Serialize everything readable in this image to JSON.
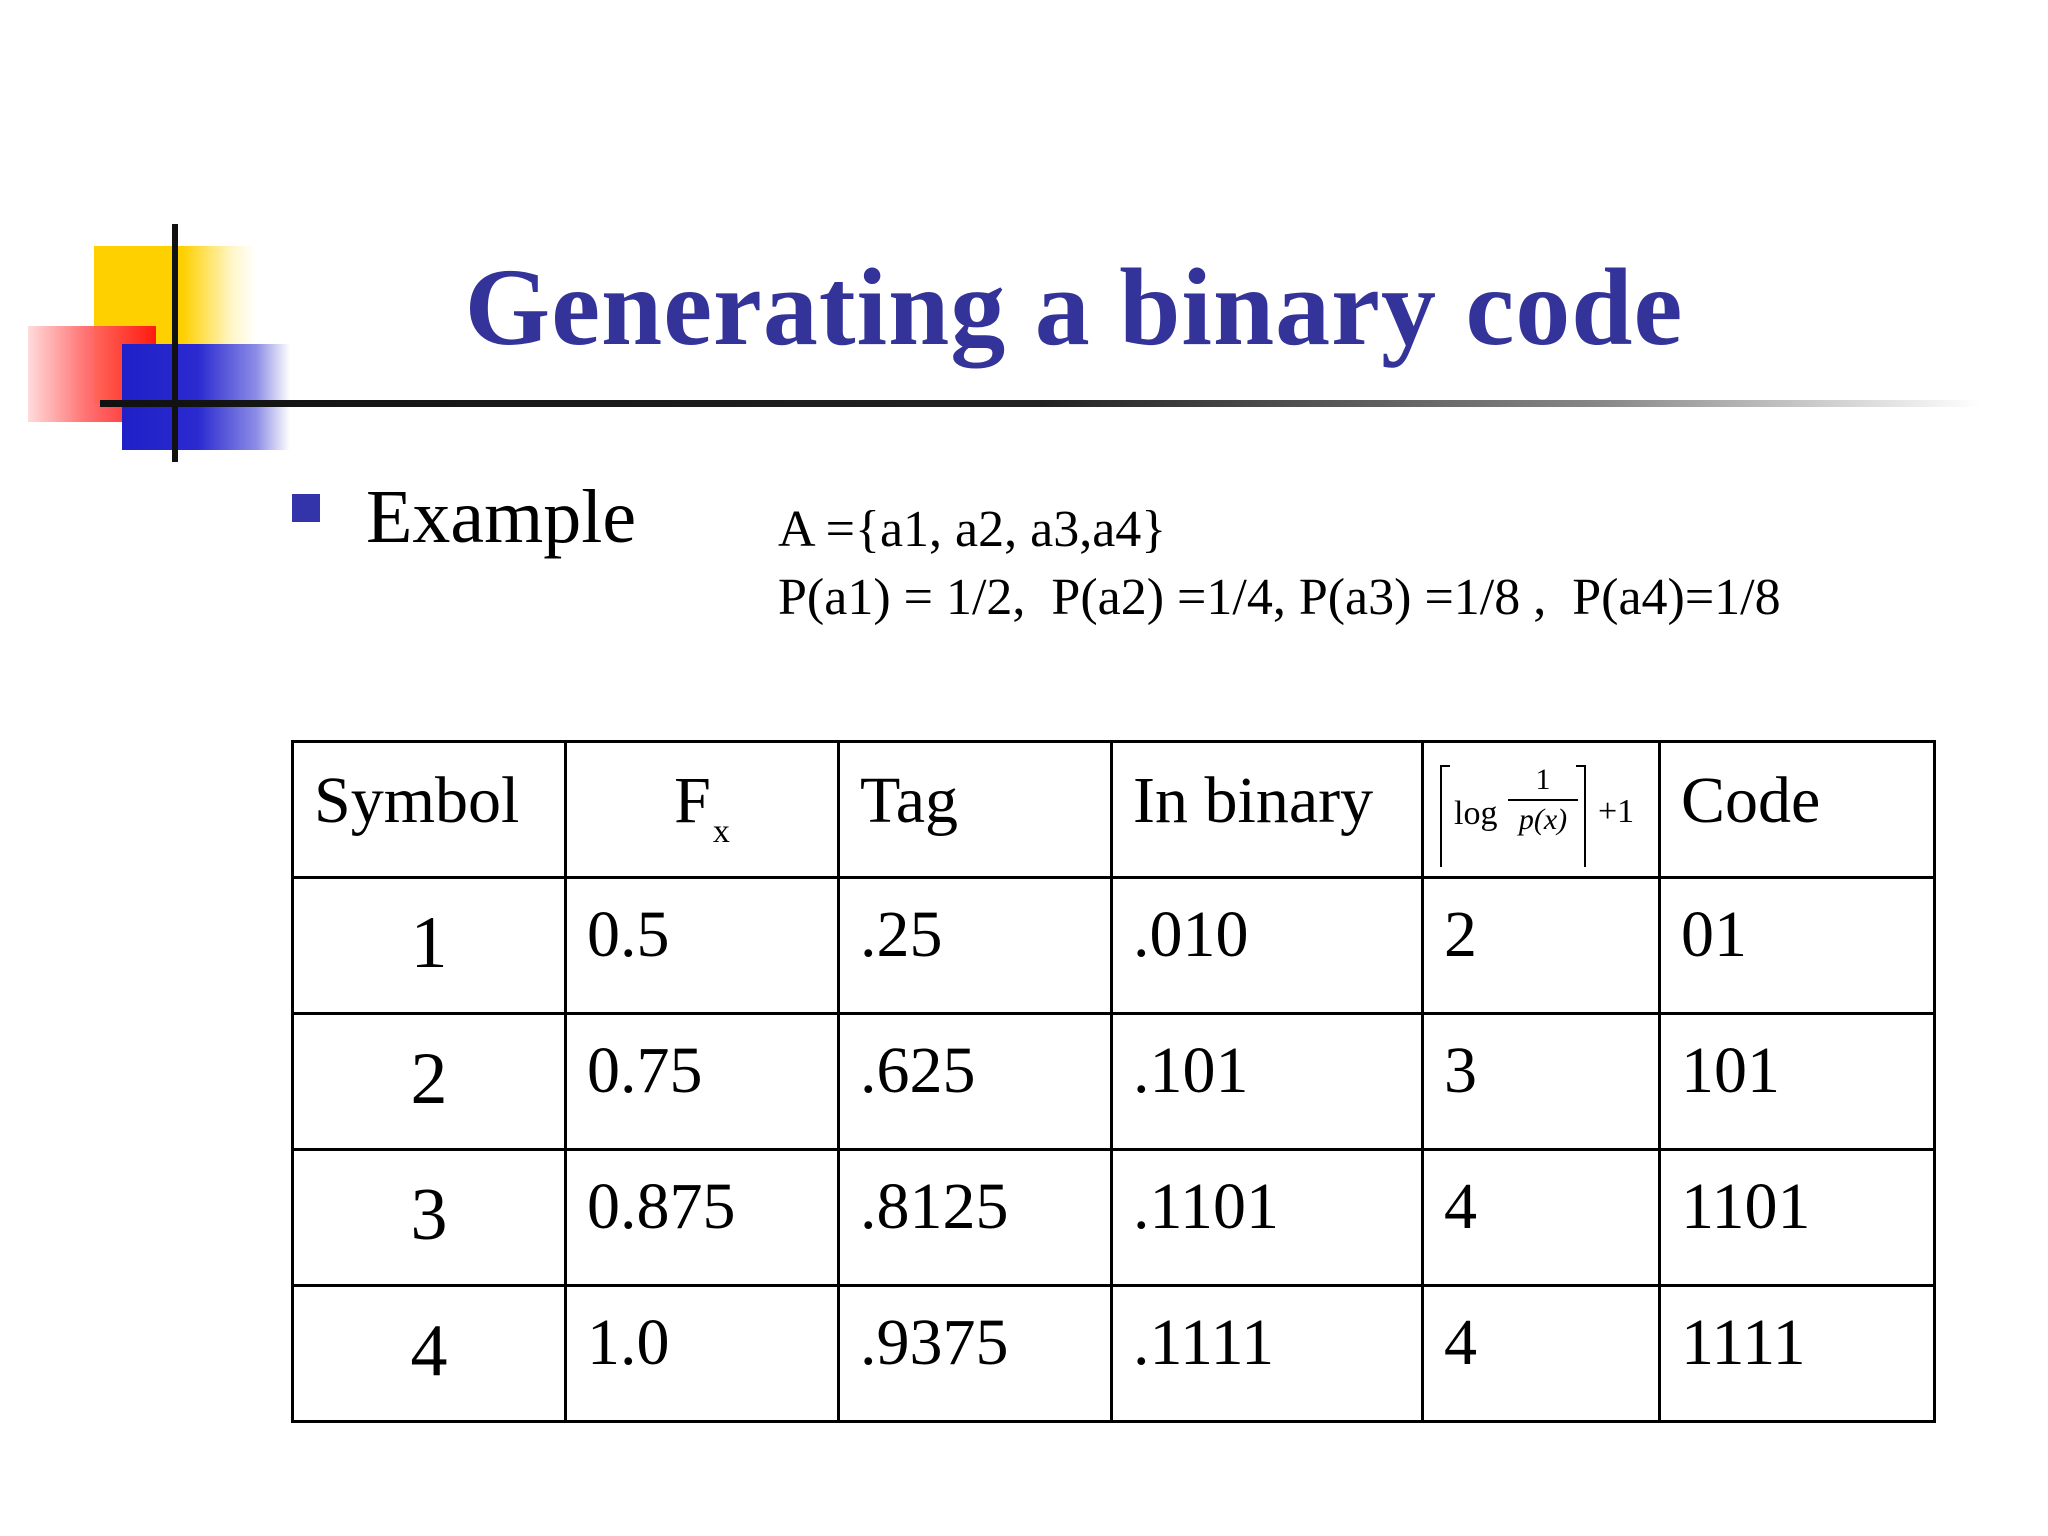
{
  "slide": {
    "title": "Generating a binary code",
    "bullet": "Example",
    "set_definition": "A ={a1, a2, a3,a4}",
    "probabilities": "P(a1) = 1/2,  P(a2) =1/4, P(a3) =1/8 ,  P(a4)=1/8"
  },
  "table": {
    "headers": {
      "symbol": "Symbol",
      "fx_main": "F",
      "fx_sub": "x",
      "tag": "Tag",
      "binary": "In binary",
      "formula_log": "log",
      "formula_num": "1",
      "formula_den": "p(x)",
      "formula_plus": "+1",
      "code": "Code"
    },
    "rows": [
      {
        "symbol": "1",
        "fx": "0.5",
        "tag": ".25",
        "binary": ".010",
        "length": "2",
        "code": "01"
      },
      {
        "symbol": "2",
        "fx": "0.75",
        "tag": ".625",
        "binary": ".101",
        "length": "3",
        "code": "101"
      },
      {
        "symbol": "3",
        "fx": "0.875",
        "tag": ".8125",
        "binary": ".1101",
        "length": "4",
        "code": "1101"
      },
      {
        "symbol": "4",
        "fx": "1.0",
        "tag": ".9375",
        "binary": ".1111",
        "length": "4",
        "code": "1111"
      }
    ]
  },
  "colors": {
    "title": "#333399",
    "bullet": "#3333aa",
    "deco_yellow": "#ffd000",
    "deco_red": "#ff1010",
    "deco_blue": "#2020c8"
  }
}
